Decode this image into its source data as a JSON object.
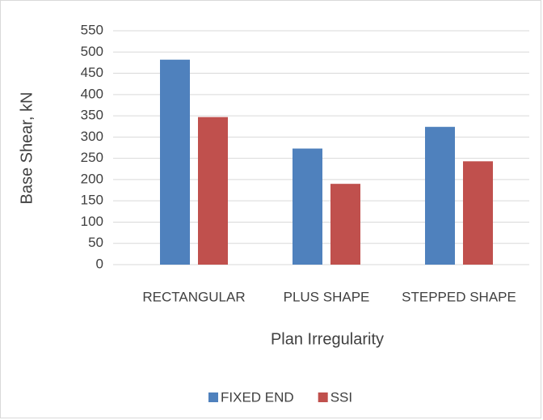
{
  "chart_data": {
    "type": "bar",
    "y_label": "Base Shear, kN",
    "x_label": "Plan Irregularity",
    "categories": [
      "RECTANGULAR",
      "PLUS SHAPE",
      "STEPPED SHAPE"
    ],
    "series": [
      {
        "name": "FIXED END",
        "color": "#4f81bd",
        "values": [
          482,
          273,
          324
        ]
      },
      {
        "name": "SSI",
        "color": "#c0504d",
        "values": [
          347,
          190,
          243
        ]
      }
    ],
    "ylim": [
      0,
      550
    ],
    "yticks": [
      0,
      50,
      100,
      150,
      200,
      250,
      300,
      350,
      400,
      450,
      500,
      550
    ],
    "grid": true,
    "legend": "bottom"
  }
}
